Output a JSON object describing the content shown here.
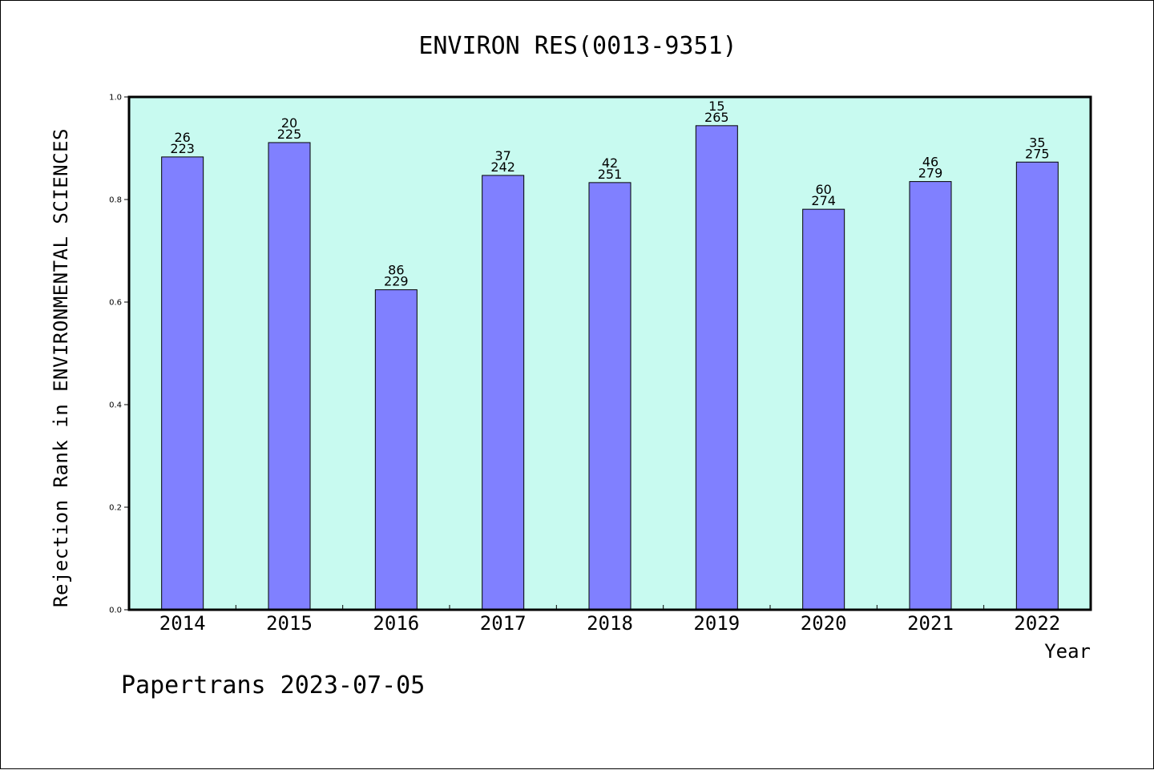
{
  "chart_data": {
    "type": "bar",
    "title": "ENVIRON RES(0013-9351)",
    "xlabel": "Year",
    "ylabel": "Rejection Rank in ENVIRONMENTAL SCIENCES",
    "categories": [
      "2014",
      "2015",
      "2016",
      "2017",
      "2018",
      "2019",
      "2020",
      "2021",
      "2022"
    ],
    "values": [
      0.883,
      0.911,
      0.624,
      0.847,
      0.833,
      0.944,
      0.781,
      0.835,
      0.873
    ],
    "rank_labels": [
      "26",
      "20",
      "86",
      "37",
      "42",
      "15",
      "60",
      "46",
      "35"
    ],
    "total_labels": [
      "223",
      "225",
      "229",
      "242",
      "251",
      "265",
      "274",
      "279",
      "275"
    ],
    "ylim": [
      0,
      1.0
    ],
    "yticks": [
      "0.0",
      "0.2",
      "0.4",
      "0.6",
      "0.8",
      "1.0"
    ],
    "grid": false,
    "colors": {
      "plot_background": "#c8faf0",
      "bar_fill": "#8080ff",
      "bar_stroke": "#000000"
    }
  },
  "footer": {
    "text": "Papertrans 2023-07-05"
  }
}
